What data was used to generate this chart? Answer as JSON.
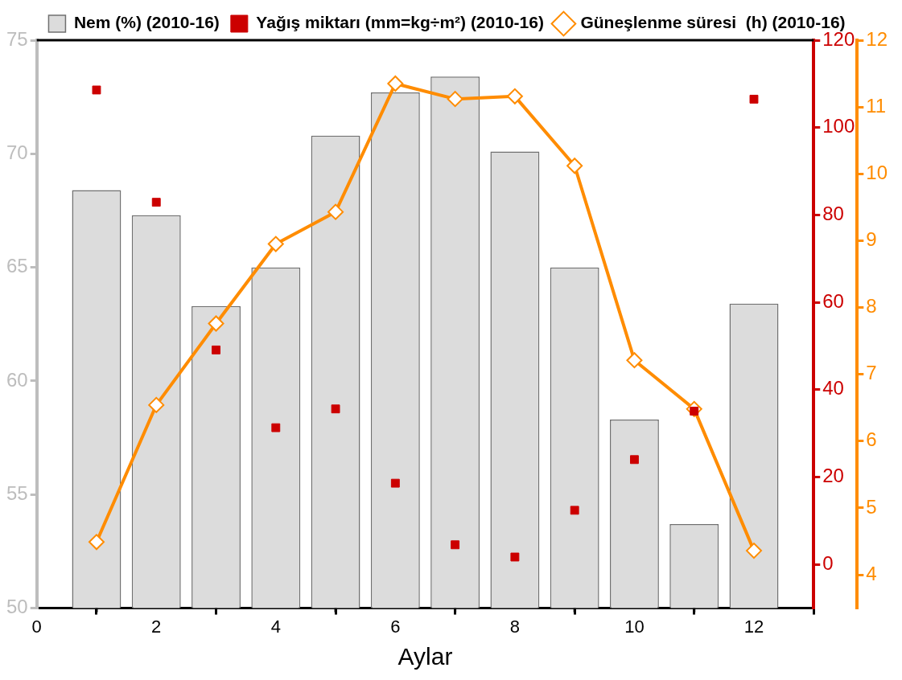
{
  "chart_data": {
    "type": "bar",
    "xlabel": "Aylar",
    "x": [
      1,
      2,
      3,
      4,
      5,
      6,
      7,
      8,
      9,
      10,
      11,
      12
    ],
    "xlim": [
      0,
      13
    ],
    "xticks": [
      0,
      2,
      4,
      6,
      8,
      10,
      12
    ],
    "ylim": [
      50,
      75
    ],
    "yticks": [
      50,
      55,
      60,
      65,
      70,
      75
    ],
    "y2lim": [
      -10,
      120
    ],
    "y2ticks": [
      0,
      20,
      40,
      60,
      80,
      100,
      120
    ],
    "y3lim": [
      3.5,
      12
    ],
    "y3ticks": [
      4,
      5,
      6,
      7,
      8,
      9,
      10,
      11,
      12
    ],
    "legend": "top",
    "grid": false,
    "series": [
      {
        "name": "Nem (%) (2010-16)",
        "color": "#dcdcdc",
        "values": [
          68.4,
          67.3,
          63.3,
          65.0,
          70.8,
          72.7,
          73.4,
          70.1,
          65.0,
          58.3,
          53.7,
          63.4
        ]
      },
      {
        "name": "Yağış miktarı (mm=kg÷m²) (2010-16)",
        "type": "scatter",
        "axis": "y2",
        "marker": "square",
        "color": "#cc0000",
        "values": [
          108.6,
          82.9,
          49.1,
          31.3,
          35.6,
          18.6,
          4.5,
          1.7,
          12.4,
          24.0,
          35.1,
          106.5
        ]
      },
      {
        "name": "Güneşlenme süresi  (h) (2010-16)",
        "type": "line",
        "axis": "y3",
        "marker": "diamond",
        "color": "#ff8c00",
        "values": [
          4.49,
          6.54,
          7.76,
          8.95,
          9.43,
          11.35,
          11.12,
          11.16,
          10.12,
          7.21,
          6.48,
          4.36
        ]
      }
    ]
  }
}
